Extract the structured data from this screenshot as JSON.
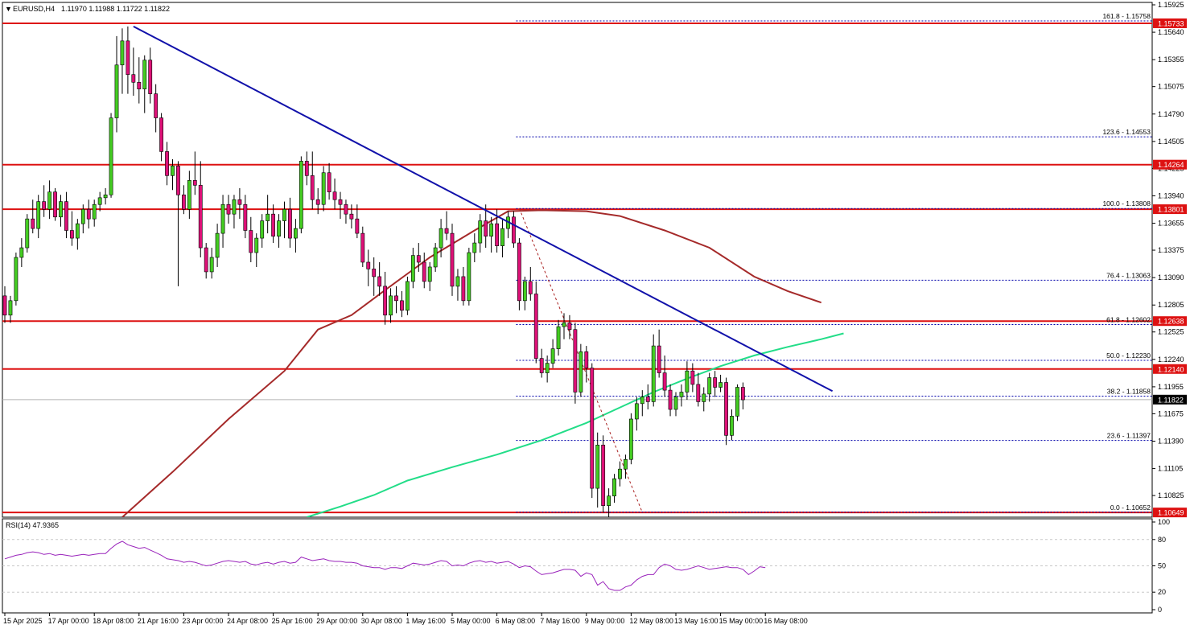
{
  "chart_data": {
    "type": "candlestick",
    "header": {
      "arrow": "▼",
      "symbol": "EURUSD,H4",
      "ohlc": "1.11970 1.11988 1.11722 1.11822"
    },
    "price_axis": {
      "ylim": [
        1.106,
        1.1595
      ],
      "ticks": [
        "1.15925",
        "1.15640",
        "1.15355",
        "1.15075",
        "1.14790",
        "1.14505",
        "1.14225",
        "1.13940",
        "1.13655",
        "1.13375",
        "1.13090",
        "1.12805",
        "1.12525",
        "1.12240",
        "1.11955",
        "1.11675",
        "1.11390",
        "1.11105",
        "1.10825"
      ]
    },
    "time_axis": {
      "labels": [
        "15 Apr 2025",
        "17 Apr 00:00",
        "18 Apr 08:00",
        "21 Apr 16:00",
        "23 Apr 00:00",
        "24 Apr 08:00",
        "25 Apr 16:00",
        "29 Apr 00:00",
        "30 Apr 08:00",
        "1 May 16:00",
        "5 May 00:00",
        "6 May 08:00",
        "7 May 16:00",
        "9 May 00:00",
        "12 May 08:00",
        "13 May 16:00",
        "15 May 00:00",
        "16 May 08:00"
      ],
      "label_bar_index": [
        0,
        8,
        16,
        24,
        32,
        40,
        48,
        56,
        64,
        72,
        80,
        88,
        96,
        104,
        112,
        120,
        128,
        136
      ]
    },
    "current_price": {
      "label": "1.11822",
      "value": 1.11822
    },
    "horizontal_levels": [
      {
        "label": "1.15733",
        "value": 1.15733
      },
      {
        "label": "1.14264",
        "value": 1.14264
      },
      {
        "label": "1.13801",
        "value": 1.13801
      },
      {
        "label": "1.12638",
        "value": 1.12638
      },
      {
        "label": "1.12140",
        "value": 1.1214
      },
      {
        "label": "1.10649",
        "value": 1.10649
      }
    ],
    "fibonacci": {
      "start_bar": 91,
      "levels": [
        {
          "label": "161.8 - 1.15758",
          "value": 1.15758
        },
        {
          "label": "123.6 - 1.14553",
          "value": 1.14553
        },
        {
          "label": "100.0 - 1.13808",
          "value": 1.13808
        },
        {
          "label": "76.4 - 1.13063",
          "value": 1.13063
        },
        {
          "label": "61.8 - 1.12602",
          "value": 1.12602
        },
        {
          "label": "50.0 - 1.12230",
          "value": 1.1223
        },
        {
          "label": "38.2 - 1.11858",
          "value": 1.11858
        },
        {
          "label": "23.6 - 1.11397",
          "value": 1.11397
        },
        {
          "label": "0.0 - 1.10652",
          "value": 1.10652
        }
      ]
    },
    "trendline": {
      "from": {
        "bar": 23,
        "price": 1.157
      },
      "to": {
        "bar": 148,
        "price": 1.1191
      }
    },
    "fib_swing_line": {
      "from": {
        "bar": 92,
        "price": 1.1381
      },
      "to": {
        "bar": 114,
        "price": 1.1065
      }
    },
    "moving_averages": [
      {
        "color": "#a52a2a",
        "points": [
          [
            21,
            1.106
          ],
          [
            30,
            1.1107
          ],
          [
            40,
            1.1162
          ],
          [
            50,
            1.1212
          ],
          [
            56,
            1.1255
          ],
          [
            62,
            1.127
          ],
          [
            68,
            1.1296
          ],
          [
            76,
            1.133
          ],
          [
            84,
            1.1358
          ],
          [
            90,
            1.1378
          ],
          [
            96,
            1.1379
          ],
          [
            104,
            1.1378
          ],
          [
            110,
            1.1373
          ],
          [
            118,
            1.1358
          ],
          [
            126,
            1.134
          ],
          [
            134,
            1.131
          ],
          [
            140,
            1.1295
          ],
          [
            146,
            1.1283
          ]
        ]
      },
      {
        "color": "#22dd88",
        "points": [
          [
            54,
            1.106
          ],
          [
            60,
            1.1071
          ],
          [
            66,
            1.1083
          ],
          [
            72,
            1.1098
          ],
          [
            80,
            1.1112
          ],
          [
            88,
            1.1125
          ],
          [
            96,
            1.114
          ],
          [
            104,
            1.1158
          ],
          [
            110,
            1.1174
          ],
          [
            116,
            1.119
          ],
          [
            122,
            1.1204
          ],
          [
            128,
            1.1217
          ],
          [
            134,
            1.1228
          ],
          [
            140,
            1.1237
          ],
          [
            146,
            1.1245
          ],
          [
            150,
            1.1251
          ]
        ]
      }
    ],
    "candles": [
      [
        1.129,
        1.13,
        1.1262,
        1.127
      ],
      [
        1.127,
        1.129,
        1.1262,
        1.1285
      ],
      [
        1.1285,
        1.1335,
        1.128,
        1.133
      ],
      [
        1.133,
        1.135,
        1.132,
        1.134
      ],
      [
        1.134,
        1.1375,
        1.1335,
        1.137
      ],
      [
        1.137,
        1.139,
        1.1355,
        1.136
      ],
      [
        1.136,
        1.1395,
        1.135,
        1.1388
      ],
      [
        1.1388,
        1.1405,
        1.1372,
        1.138
      ],
      [
        1.138,
        1.141,
        1.137,
        1.1398
      ],
      [
        1.1398,
        1.1402,
        1.1368,
        1.1372
      ],
      [
        1.1372,
        1.1395,
        1.1362,
        1.1388
      ],
      [
        1.1388,
        1.1398,
        1.135,
        1.1358
      ],
      [
        1.1358,
        1.1378,
        1.1342,
        1.135
      ],
      [
        1.135,
        1.137,
        1.1338,
        1.1365
      ],
      [
        1.1365,
        1.1385,
        1.1355,
        1.138
      ],
      [
        1.138,
        1.139,
        1.136,
        1.137
      ],
      [
        1.137,
        1.139,
        1.1362,
        1.1385
      ],
      [
        1.1385,
        1.1398,
        1.1378,
        1.1392
      ],
      [
        1.1392,
        1.1402,
        1.1385,
        1.1395
      ],
      [
        1.1395,
        1.148,
        1.1392,
        1.1475
      ],
      [
        1.1475,
        1.156,
        1.146,
        1.153
      ],
      [
        1.153,
        1.1568,
        1.15,
        1.1555
      ],
      [
        1.1555,
        1.157,
        1.15,
        1.152
      ],
      [
        1.152,
        1.1548,
        1.1498,
        1.1512
      ],
      [
        1.1512,
        1.1538,
        1.149,
        1.1505
      ],
      [
        1.1505,
        1.154,
        1.148,
        1.1535
      ],
      [
        1.1535,
        1.1548,
        1.149,
        1.15
      ],
      [
        1.15,
        1.151,
        1.146,
        1.1475
      ],
      [
        1.1475,
        1.148,
        1.143,
        1.144
      ],
      [
        1.144,
        1.145,
        1.1405,
        1.1415
      ],
      [
        1.1415,
        1.1432,
        1.14,
        1.1425
      ],
      [
        1.1425,
        1.143,
        1.13,
        1.1395
      ],
      [
        1.1395,
        1.1405,
        1.1375,
        1.138
      ],
      [
        1.138,
        1.142,
        1.137,
        1.141
      ],
      [
        1.141,
        1.144,
        1.1395,
        1.1405
      ],
      [
        1.1405,
        1.143,
        1.133,
        1.134
      ],
      [
        1.134,
        1.1345,
        1.1308,
        1.1315
      ],
      [
        1.1315,
        1.134,
        1.1308,
        1.133
      ],
      [
        1.133,
        1.1365,
        1.132,
        1.1355
      ],
      [
        1.1355,
        1.1395,
        1.134,
        1.1385
      ],
      [
        1.1385,
        1.1395,
        1.1365,
        1.1375
      ],
      [
        1.1375,
        1.1395,
        1.136,
        1.139
      ],
      [
        1.139,
        1.1402,
        1.137,
        1.1385
      ],
      [
        1.1385,
        1.1395,
        1.135,
        1.1358
      ],
      [
        1.1358,
        1.1372,
        1.1325,
        1.1335
      ],
      [
        1.1335,
        1.1355,
        1.132,
        1.135
      ],
      [
        1.135,
        1.1375,
        1.134,
        1.1368
      ],
      [
        1.1368,
        1.1395,
        1.1355,
        1.1375
      ],
      [
        1.1375,
        1.1385,
        1.1345,
        1.1352
      ],
      [
        1.1352,
        1.1375,
        1.134,
        1.1368
      ],
      [
        1.1368,
        1.1388,
        1.135,
        1.138
      ],
      [
        1.138,
        1.1392,
        1.134,
        1.135
      ],
      [
        1.135,
        1.137,
        1.1335,
        1.136
      ],
      [
        1.136,
        1.1435,
        1.1355,
        1.143
      ],
      [
        1.143,
        1.144,
        1.1405,
        1.1415
      ],
      [
        1.1415,
        1.144,
        1.138,
        1.139
      ],
      [
        1.139,
        1.1402,
        1.1375,
        1.1385
      ],
      [
        1.1385,
        1.1425,
        1.1378,
        1.1418
      ],
      [
        1.1418,
        1.1428,
        1.139,
        1.1398
      ],
      [
        1.1398,
        1.1412,
        1.138,
        1.139
      ],
      [
        1.139,
        1.1398,
        1.137,
        1.1385
      ],
      [
        1.1385,
        1.139,
        1.1365,
        1.1375
      ],
      [
        1.1375,
        1.1385,
        1.136,
        1.137
      ],
      [
        1.137,
        1.1385,
        1.135,
        1.1355
      ],
      [
        1.1355,
        1.1362,
        1.132,
        1.1325
      ],
      [
        1.1325,
        1.1338,
        1.13,
        1.1318
      ],
      [
        1.1318,
        1.133,
        1.129,
        1.131
      ],
      [
        1.131,
        1.1325,
        1.129,
        1.13
      ],
      [
        1.13,
        1.1315,
        1.126,
        1.127
      ],
      [
        1.127,
        1.1298,
        1.1262,
        1.129
      ],
      [
        1.129,
        1.13,
        1.1272,
        1.1285
      ],
      [
        1.1285,
        1.1295,
        1.1268,
        1.1275
      ],
      [
        1.1275,
        1.131,
        1.127,
        1.1305
      ],
      [
        1.1305,
        1.134,
        1.1298,
        1.1332
      ],
      [
        1.1332,
        1.1345,
        1.1315,
        1.1325
      ],
      [
        1.1325,
        1.1335,
        1.1298,
        1.1305
      ],
      [
        1.1305,
        1.1325,
        1.1295,
        1.132
      ],
      [
        1.132,
        1.1345,
        1.1315,
        1.134
      ],
      [
        1.134,
        1.137,
        1.133,
        1.136
      ],
      [
        1.136,
        1.1378,
        1.1348,
        1.1355
      ],
      [
        1.1355,
        1.1365,
        1.129,
        1.13
      ],
      [
        1.13,
        1.1318,
        1.1285,
        1.131
      ],
      [
        1.131,
        1.132,
        1.128,
        1.1285
      ],
      [
        1.1285,
        1.134,
        1.128,
        1.1335
      ],
      [
        1.1335,
        1.1355,
        1.1325,
        1.1345
      ],
      [
        1.1345,
        1.1375,
        1.1335,
        1.1368
      ],
      [
        1.1368,
        1.1385,
        1.134,
        1.1352
      ],
      [
        1.1352,
        1.1372,
        1.1335,
        1.1365
      ],
      [
        1.1365,
        1.138,
        1.1335,
        1.1342
      ],
      [
        1.1342,
        1.137,
        1.133,
        1.136
      ],
      [
        1.136,
        1.1378,
        1.135,
        1.1372
      ],
      [
        1.1372,
        1.1378,
        1.134,
        1.1345
      ],
      [
        1.1345,
        1.135,
        1.1275,
        1.1285
      ],
      [
        1.1285,
        1.131,
        1.1275,
        1.1305
      ],
      [
        1.1305,
        1.132,
        1.1285,
        1.1292
      ],
      [
        1.1292,
        1.1305,
        1.122,
        1.1225
      ],
      [
        1.1225,
        1.1235,
        1.1205,
        1.121
      ],
      [
        1.121,
        1.1228,
        1.12,
        1.122
      ],
      [
        1.122,
        1.1245,
        1.1215,
        1.1235
      ],
      [
        1.1235,
        1.1265,
        1.1228,
        1.1258
      ],
      [
        1.1258,
        1.1272,
        1.1245,
        1.1262
      ],
      [
        1.1262,
        1.127,
        1.1245,
        1.1255
      ],
      [
        1.1255,
        1.1262,
        1.1178,
        1.119
      ],
      [
        1.119,
        1.124,
        1.1185,
        1.1232
      ],
      [
        1.1232,
        1.1238,
        1.12,
        1.1215
      ],
      [
        1.1215,
        1.122,
        1.108,
        1.109
      ],
      [
        1.109,
        1.1148,
        1.107,
        1.1135
      ],
      [
        1.1135,
        1.1145,
        1.1065,
        1.1072
      ],
      [
        1.1072,
        1.109,
        1.106,
        1.1082
      ],
      [
        1.1082,
        1.1105,
        1.1075,
        1.11
      ],
      [
        1.11,
        1.1118,
        1.1092,
        1.111
      ],
      [
        1.111,
        1.1125,
        1.11,
        1.112
      ],
      [
        1.112,
        1.1168,
        1.1115,
        1.1162
      ],
      [
        1.1162,
        1.1185,
        1.115,
        1.1178
      ],
      [
        1.1178,
        1.1192,
        1.1165,
        1.1185
      ],
      [
        1.1185,
        1.1198,
        1.1172,
        1.118
      ],
      [
        1.118,
        1.125,
        1.1175,
        1.1238
      ],
      [
        1.1238,
        1.1255,
        1.1205,
        1.121
      ],
      [
        1.121,
        1.1228,
        1.1185,
        1.1192
      ],
      [
        1.1192,
        1.1198,
        1.1165,
        1.1172
      ],
      [
        1.1172,
        1.119,
        1.1165,
        1.1185
      ],
      [
        1.1185,
        1.1198,
        1.1175,
        1.119
      ],
      [
        1.119,
        1.1222,
        1.1182,
        1.1212
      ],
      [
        1.1212,
        1.122,
        1.119,
        1.1198
      ],
      [
        1.1198,
        1.121,
        1.1175,
        1.118
      ],
      [
        1.118,
        1.1195,
        1.117,
        1.1188
      ],
      [
        1.1188,
        1.121,
        1.118,
        1.1205
      ],
      [
        1.1205,
        1.1212,
        1.1185,
        1.1195
      ],
      [
        1.1195,
        1.1208,
        1.119,
        1.12
      ],
      [
        1.12,
        1.1205,
        1.1135,
        1.1145
      ],
      [
        1.1145,
        1.1172,
        1.114,
        1.1165
      ],
      [
        1.1165,
        1.1198,
        1.116,
        1.1195
      ],
      [
        1.1195,
        1.12,
        1.1172,
        1.1182
      ]
    ],
    "rsi": {
      "label": "RSI(14) 47.9365",
      "ylim": [
        0,
        100
      ],
      "ticks": [
        "100",
        "80",
        "50",
        "20",
        "0"
      ],
      "tick_values": [
        100,
        80,
        50,
        20,
        0
      ],
      "guide_levels": [
        80,
        50,
        20
      ],
      "values": [
        58,
        60,
        62,
        63,
        65,
        66,
        65,
        63,
        64,
        62,
        63,
        62,
        61,
        62,
        63,
        62,
        63,
        64,
        64,
        70,
        75,
        78,
        74,
        72,
        70,
        71,
        68,
        65,
        62,
        58,
        57,
        56,
        54,
        55,
        54,
        52,
        50,
        51,
        53,
        55,
        56,
        55,
        54,
        55,
        52,
        51,
        53,
        54,
        52,
        54,
        55,
        53,
        54,
        60,
        58,
        56,
        57,
        58,
        56,
        55,
        55,
        54,
        54,
        53,
        50,
        49,
        48,
        48,
        46,
        48,
        48,
        47,
        50,
        53,
        52,
        51,
        52,
        54,
        56,
        55,
        50,
        51,
        50,
        53,
        55,
        56,
        54,
        55,
        53,
        54,
        55,
        52,
        48,
        50,
        49,
        44,
        40,
        41,
        42,
        44,
        46,
        46,
        45,
        38,
        42,
        40,
        28,
        32,
        24,
        22,
        22,
        26,
        28,
        34,
        38,
        40,
        40,
        48,
        52,
        50,
        46,
        45,
        46,
        48,
        50,
        48,
        46,
        47,
        48,
        49,
        48,
        48,
        46,
        40,
        44,
        49,
        48
      ]
    },
    "colors": {
      "bull": "#44cc22",
      "bear": "#dd1177",
      "level_line": "#dd1111",
      "level_tag": "#dd1111",
      "trendline": "#1111aa",
      "fib_line": "#0000aa",
      "swing_line": "#aa2222",
      "rsi_line": "#9922bb",
      "current_tag": "#000000",
      "grid": "#c8c8c8"
    }
  }
}
